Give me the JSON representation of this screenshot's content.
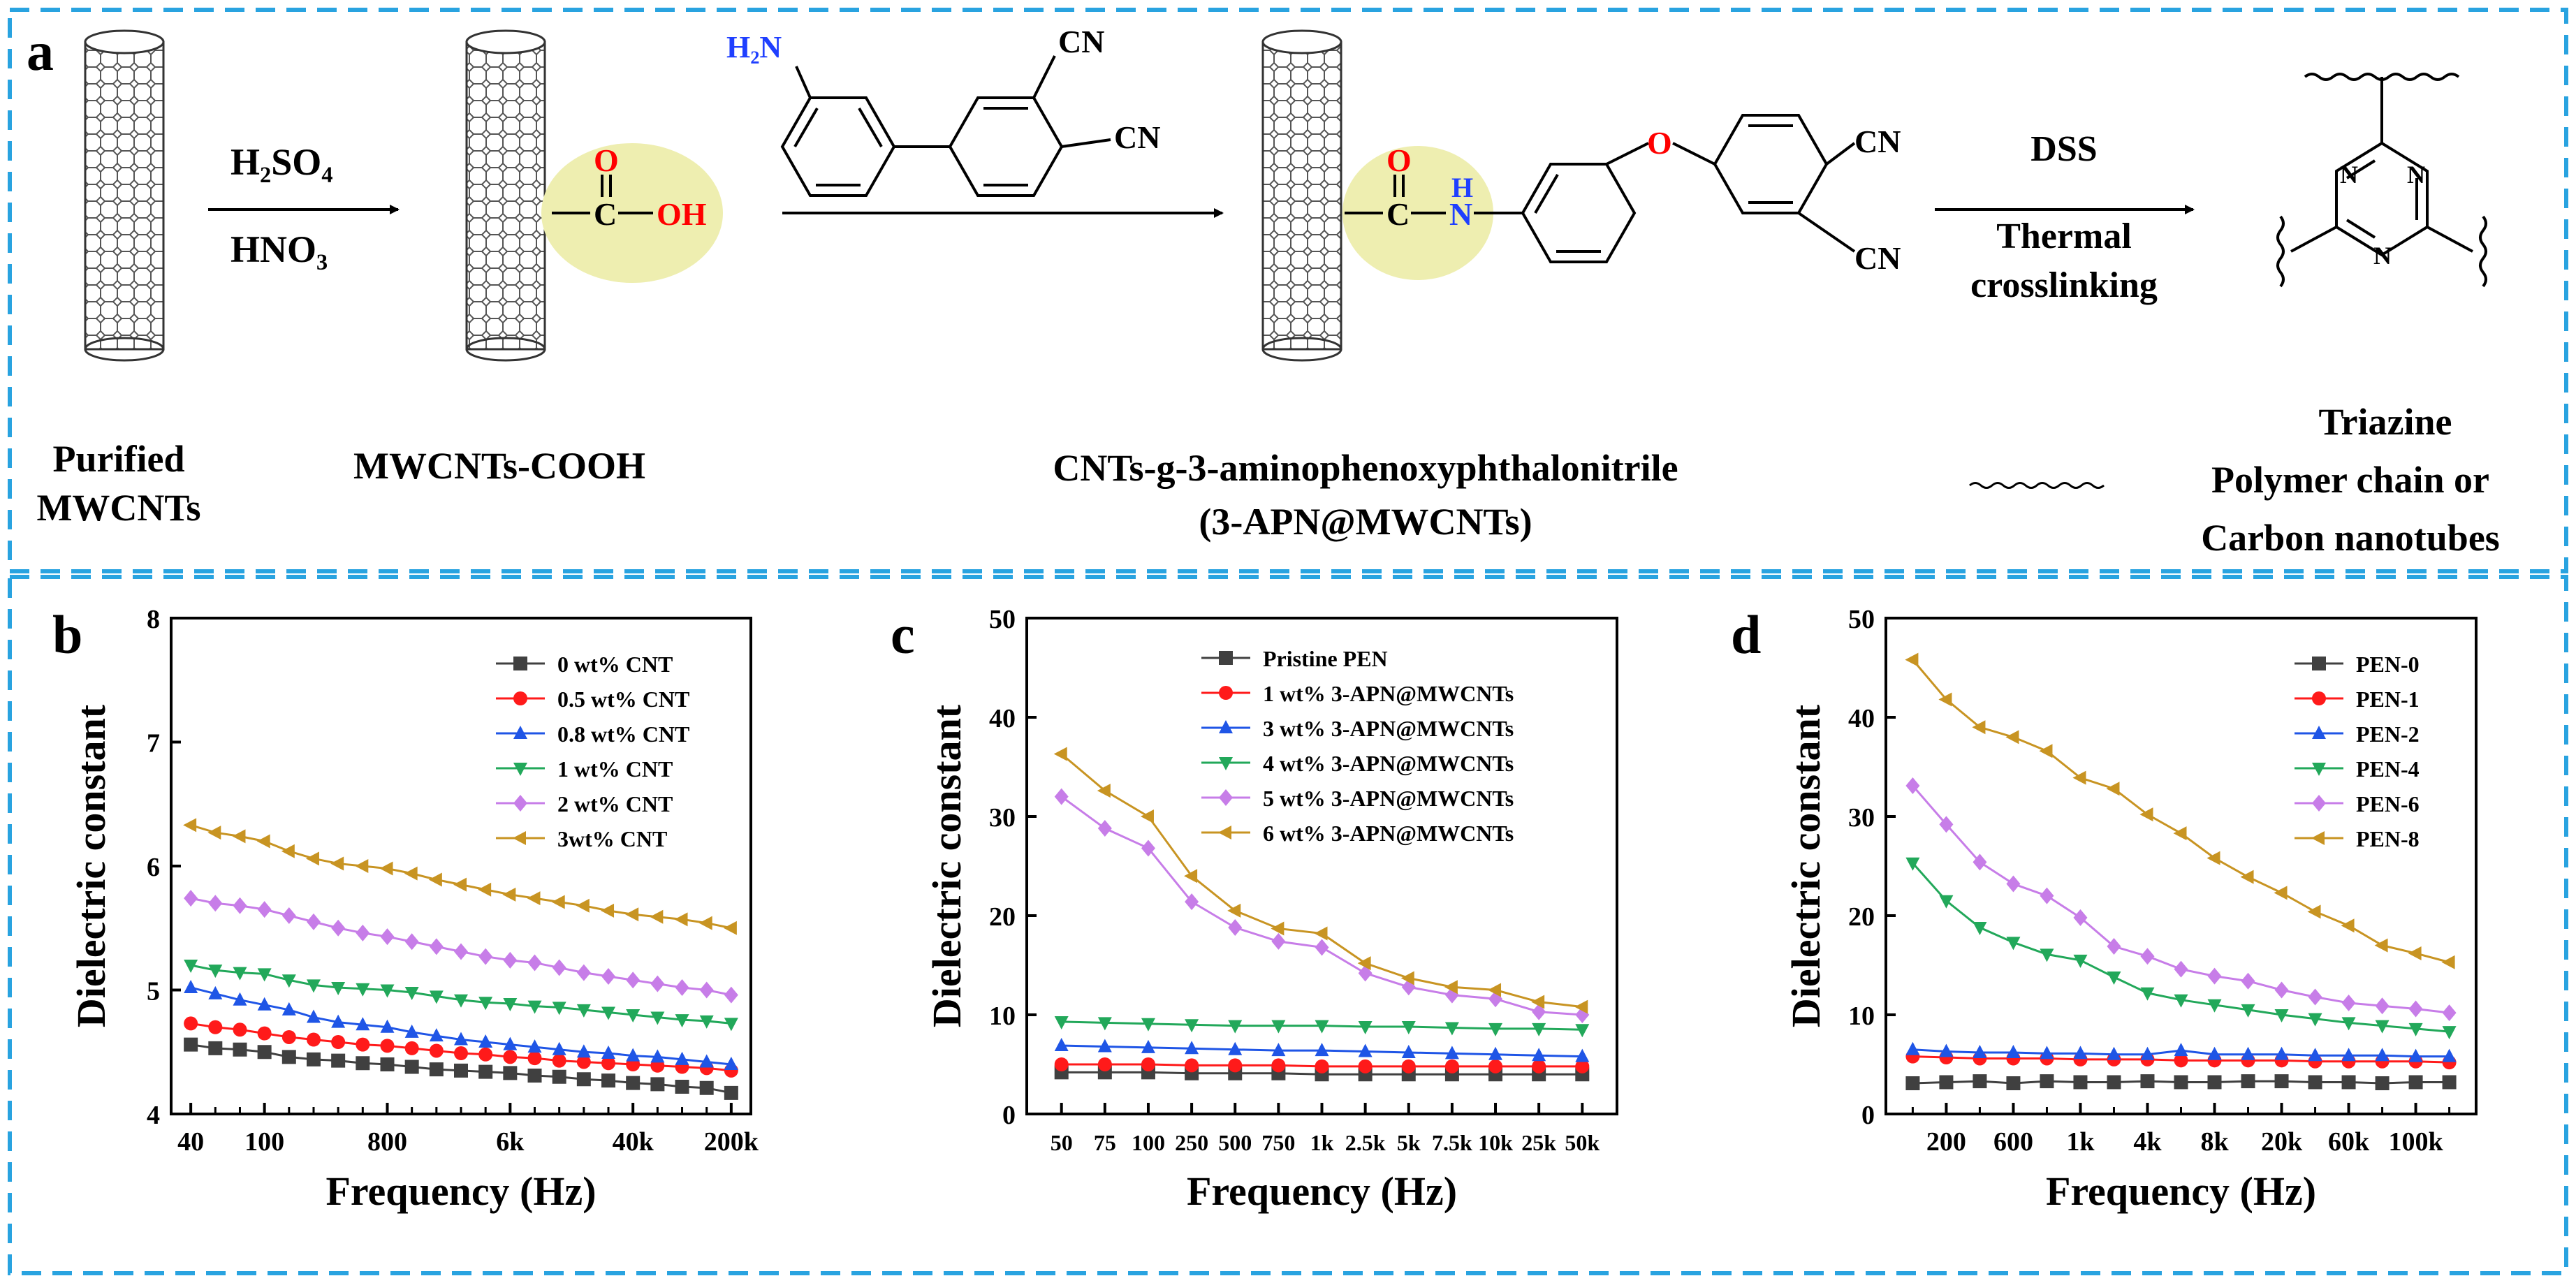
{
  "panel_a": {
    "label": "a",
    "reagent_top": "H₂SO₄",
    "reagent_bottom": "HNO₃",
    "group_o": "O",
    "group_c": "C",
    "group_oh": "OH",
    "nh2": "H₂N",
    "cn1": "CN",
    "cn2": "CN",
    "prod_o": "O",
    "prod_c": "C",
    "prod_n": "N",
    "prod_h": "H",
    "ether_o": "O",
    "prod_cn1": "CN",
    "prod_cn2": "CN",
    "step3_top": "DSS",
    "step3_mid": "Thermal",
    "step3_bot": "crosslinking",
    "triazine_n": "N",
    "name_purified_1": "Purified",
    "name_purified_2": "MWCNTs",
    "name_cooh": "MWCNTs-COOH",
    "name_graft_1": "CNTs-g-3-aminophenoxyphthalonitrile",
    "name_graft_2": "(3-APN@MWCNTs)",
    "legend_triazine": "Triazine",
    "legend_chain_1": "Polymer chain or",
    "legend_chain_2": "Carbon nanotubes"
  },
  "colors": {
    "border": "#29a3e0",
    "highlight": "#eeeeb0",
    "oxygen": "#ff0000",
    "nitrogen": "#1f3fff",
    "series": [
      "#404040",
      "#ff1a1a",
      "#1f55e6",
      "#22a85a",
      "#c77de8",
      "#c89422"
    ]
  },
  "chart_data": [
    {
      "panel": "b",
      "type": "line",
      "xlabel": "Frequency (Hz)",
      "ylabel": "Dielectric constant",
      "ylim": [
        4,
        8
      ],
      "yticks": [
        "4",
        "5",
        "6",
        "7",
        "8"
      ],
      "xticks": [
        "40",
        "100",
        "800",
        "6k",
        "40k",
        "200k"
      ],
      "xtick_index": [
        0,
        3,
        8,
        13,
        18,
        22
      ],
      "n_points": 23,
      "legend_position": "top-right",
      "series": [
        {
          "name": "0 wt% CNT",
          "marker": "square",
          "values": [
            4.56,
            4.53,
            4.52,
            4.5,
            4.46,
            4.44,
            4.43,
            4.41,
            4.4,
            4.38,
            4.36,
            4.35,
            4.34,
            4.33,
            4.31,
            4.3,
            4.28,
            4.27,
            4.25,
            4.24,
            4.22,
            4.21,
            4.17
          ]
        },
        {
          "name": "0.5 wt% CNT",
          "marker": "circle",
          "values": [
            4.73,
            4.7,
            4.68,
            4.65,
            4.62,
            4.6,
            4.58,
            4.56,
            4.55,
            4.53,
            4.51,
            4.49,
            4.48,
            4.46,
            4.45,
            4.43,
            4.42,
            4.41,
            4.4,
            4.39,
            4.38,
            4.37,
            4.35
          ]
        },
        {
          "name": "0.8 wt% CNT",
          "marker": "triangle-up",
          "values": [
            5.02,
            4.97,
            4.92,
            4.88,
            4.84,
            4.78,
            4.74,
            4.72,
            4.7,
            4.66,
            4.63,
            4.6,
            4.58,
            4.56,
            4.54,
            4.52,
            4.5,
            4.49,
            4.47,
            4.46,
            4.44,
            4.42,
            4.4
          ]
        },
        {
          "name": "1 wt% CNT",
          "marker": "triangle-down",
          "values": [
            5.2,
            5.16,
            5.14,
            5.13,
            5.08,
            5.04,
            5.02,
            5.01,
            5.0,
            4.98,
            4.95,
            4.92,
            4.9,
            4.89,
            4.87,
            4.86,
            4.84,
            4.82,
            4.8,
            4.78,
            4.76,
            4.75,
            4.73
          ]
        },
        {
          "name": "2 wt% CNT",
          "marker": "diamond",
          "values": [
            5.74,
            5.7,
            5.68,
            5.65,
            5.6,
            5.55,
            5.5,
            5.46,
            5.43,
            5.39,
            5.35,
            5.31,
            5.27,
            5.24,
            5.22,
            5.18,
            5.14,
            5.11,
            5.08,
            5.05,
            5.02,
            5.0,
            4.96
          ]
        },
        {
          "name": "3wt% CNT",
          "marker": "triangle-left",
          "values": [
            6.33,
            6.27,
            6.24,
            6.2,
            6.12,
            6.06,
            6.02,
            6.0,
            5.98,
            5.94,
            5.89,
            5.85,
            5.81,
            5.77,
            5.74,
            5.71,
            5.68,
            5.64,
            5.61,
            5.59,
            5.57,
            5.54,
            5.5
          ]
        }
      ]
    },
    {
      "panel": "c",
      "type": "line",
      "xlabel": "Frequency (Hz)",
      "ylabel": "Dielectric constant",
      "ylim": [
        0,
        50
      ],
      "yticks": [
        "0",
        "10",
        "20",
        "30",
        "40",
        "50"
      ],
      "categories": [
        "50",
        "75",
        "100",
        "250",
        "500",
        "750",
        "1k",
        "2.5k",
        "5k",
        "7.5k",
        "10k",
        "25k",
        "50k"
      ],
      "legend_position": "top-right",
      "series": [
        {
          "name": "Pristine PEN",
          "marker": "square",
          "values": [
            4.2,
            4.2,
            4.2,
            4.1,
            4.1,
            4.1,
            4.0,
            4.0,
            4.0,
            4.0,
            4.0,
            4.0,
            4.0
          ]
        },
        {
          "name": "1 wt% 3-APN@MWCNTs",
          "marker": "circle",
          "values": [
            5.0,
            5.0,
            5.0,
            4.9,
            4.9,
            4.9,
            4.8,
            4.8,
            4.8,
            4.8,
            4.8,
            4.8,
            4.8
          ]
        },
        {
          "name": "3 wt% 3-APN@MWCNTs",
          "marker": "triangle-up",
          "values": [
            6.9,
            6.8,
            6.7,
            6.6,
            6.5,
            6.4,
            6.4,
            6.3,
            6.2,
            6.1,
            6.0,
            5.9,
            5.8
          ]
        },
        {
          "name": "4 wt% 3-APN@MWCNTs",
          "marker": "triangle-down",
          "values": [
            9.3,
            9.2,
            9.1,
            9.0,
            8.9,
            8.9,
            8.9,
            8.8,
            8.8,
            8.7,
            8.6,
            8.6,
            8.5
          ]
        },
        {
          "name": "5 wt% 3-APN@MWCNTs",
          "marker": "diamond",
          "values": [
            32.0,
            28.8,
            26.8,
            21.4,
            18.8,
            17.4,
            16.8,
            14.2,
            12.8,
            12.0,
            11.6,
            10.3,
            10.0
          ]
        },
        {
          "name": "6 wt% 3-APN@MWCNTs",
          "marker": "triangle-left",
          "values": [
            36.3,
            32.6,
            30.0,
            24.0,
            20.5,
            18.7,
            18.2,
            15.2,
            13.7,
            12.8,
            12.5,
            11.3,
            10.8
          ]
        }
      ]
    },
    {
      "panel": "d",
      "type": "line",
      "xlabel": "Frequency (Hz)",
      "ylabel": "Dielectric constant",
      "ylim": [
        0,
        50
      ],
      "yticks": [
        "0",
        "10",
        "20",
        "30",
        "40",
        "50"
      ],
      "xticks": [
        "200",
        "600",
        "1k",
        "4k",
        "8k",
        "20k",
        "60k",
        "100k"
      ],
      "xtick_index": [
        1,
        3,
        5,
        7,
        9,
        11,
        13,
        15
      ],
      "n_points": 17,
      "legend_position": "top-right",
      "series": [
        {
          "name": "PEN-0",
          "marker": "square",
          "values": [
            3.1,
            3.2,
            3.3,
            3.1,
            3.3,
            3.2,
            3.2,
            3.3,
            3.2,
            3.2,
            3.3,
            3.3,
            3.2,
            3.2,
            3.1,
            3.2,
            3.2
          ]
        },
        {
          "name": "PEN-1",
          "marker": "circle",
          "values": [
            5.8,
            5.7,
            5.6,
            5.6,
            5.6,
            5.5,
            5.5,
            5.5,
            5.4,
            5.4,
            5.4,
            5.4,
            5.3,
            5.3,
            5.3,
            5.3,
            5.2
          ]
        },
        {
          "name": "PEN-2",
          "marker": "triangle-up",
          "values": [
            6.5,
            6.3,
            6.2,
            6.2,
            6.1,
            6.1,
            6.0,
            6.0,
            6.4,
            6.0,
            6.0,
            6.0,
            5.9,
            5.9,
            5.9,
            5.8,
            5.8
          ]
        },
        {
          "name": "PEN-4",
          "marker": "triangle-down",
          "values": [
            25.3,
            21.5,
            18.8,
            17.3,
            16.1,
            15.5,
            13.8,
            12.2,
            11.5,
            11.0,
            10.5,
            10.0,
            9.6,
            9.2,
            8.9,
            8.6,
            8.3
          ]
        },
        {
          "name": "PEN-6",
          "marker": "diamond",
          "values": [
            33.1,
            29.2,
            25.4,
            23.2,
            22.0,
            19.8,
            16.9,
            15.9,
            14.6,
            13.9,
            13.4,
            12.5,
            11.8,
            11.2,
            10.9,
            10.6,
            10.2
          ]
        },
        {
          "name": "PEN-8",
          "marker": "triangle-left",
          "values": [
            45.8,
            41.8,
            39.0,
            38.0,
            36.6,
            33.9,
            32.8,
            30.2,
            28.3,
            25.8,
            23.9,
            22.3,
            20.4,
            19.0,
            17.0,
            16.2,
            15.3
          ]
        }
      ]
    }
  ]
}
